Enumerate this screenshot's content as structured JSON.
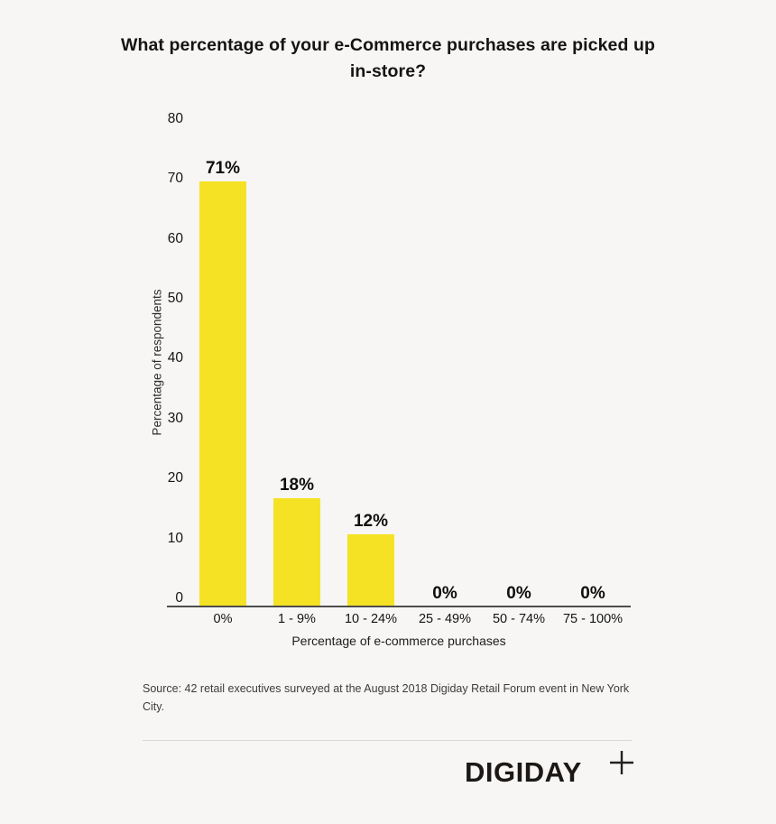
{
  "title": "What percentage of your e-Commerce purchases are picked up in-store?",
  "chart_data": {
    "type": "bar",
    "categories": [
      "0%",
      "1 - 9%",
      "10 - 24%",
      "25 - 49%",
      "50 - 74%",
      "75 - 100%"
    ],
    "values": [
      71,
      18,
      12,
      0,
      0,
      0
    ],
    "value_labels": [
      "71%",
      "18%",
      "12%",
      "0%",
      "0%",
      "0%"
    ],
    "xlabel": "Percentage of e-commerce purchases",
    "ylabel": "Percentage of respondents",
    "ylim": [
      0,
      80
    ],
    "yticks": [
      0,
      10,
      20,
      30,
      40,
      50,
      60,
      70,
      80
    ],
    "grid": false,
    "legend_position": "none",
    "bar_color": "#f6e225"
  },
  "source_note": "Source: 42 retail executives surveyed at the August 2018 Digiday Retail Forum event in New York City.",
  "footer": {
    "logo_text": "DIGIDAY",
    "logo_plus": "+"
  },
  "colors": {
    "background": "#f7f6f4",
    "bar": "#f6e225",
    "axis": "#4d4d4d",
    "text": "#141414"
  }
}
